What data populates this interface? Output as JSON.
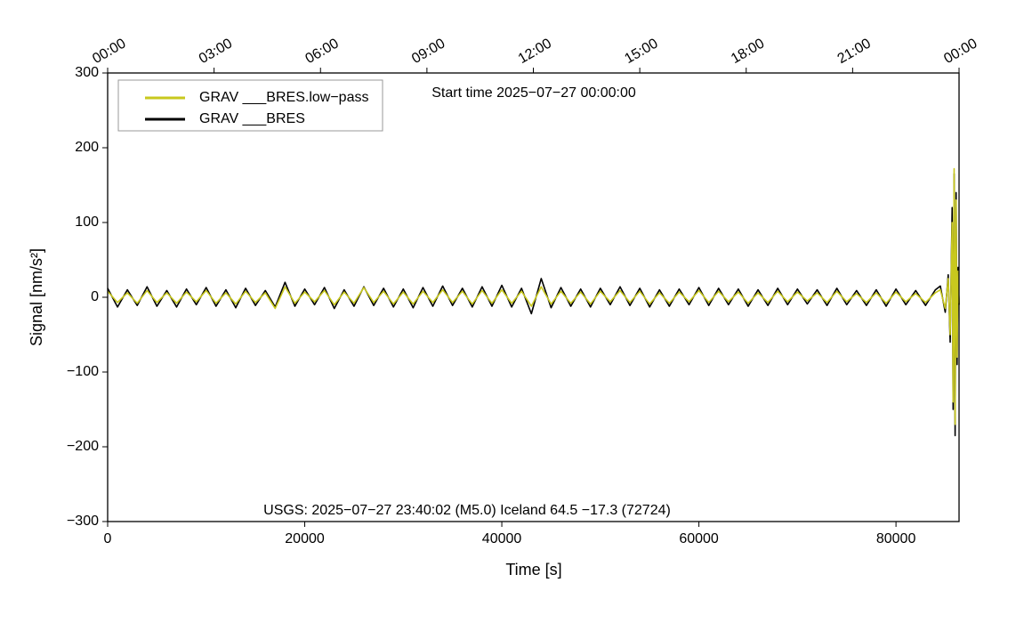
{
  "chart_data": {
    "type": "line",
    "annotations": [
      "Start time 2025−07−27 00:00:00",
      "USGS: 2025−07−27 23:40:02 (M5.0) Iceland 64.5 −17.3 (72724)"
    ],
    "x_label": "Time [s]",
    "y_label": "Signal [nm/s²]",
    "x": [
      0,
      1000,
      2000,
      3000,
      4000,
      5000,
      6000,
      7000,
      8000,
      9000,
      10000,
      11000,
      12000,
      13000,
      14000,
      15000,
      16000,
      17000,
      18000,
      19000,
      20000,
      21000,
      22000,
      23000,
      24000,
      25000,
      26000,
      27000,
      28000,
      29000,
      30000,
      31000,
      32000,
      33000,
      34000,
      35000,
      36000,
      37000,
      38000,
      39000,
      40000,
      41000,
      42000,
      43000,
      44000,
      45000,
      46000,
      47000,
      48000,
      49000,
      50000,
      51000,
      52000,
      53000,
      54000,
      55000,
      56000,
      57000,
      58000,
      59000,
      60000,
      61000,
      62000,
      63000,
      64000,
      65000,
      66000,
      67000,
      68000,
      69000,
      70000,
      71000,
      72000,
      73000,
      74000,
      75000,
      76000,
      77000,
      78000,
      79000,
      80000,
      81000,
      82000,
      83000,
      84000,
      84500,
      85000,
      85300,
      85500,
      85700,
      85800,
      85900,
      86000,
      86100,
      86200,
      86300,
      86400
    ],
    "series": [
      {
        "name": "GRAV ___BRES.low−pass",
        "color": "#c8c81e",
        "values": [
          8,
          -7,
          6,
          -8,
          9,
          -7,
          6,
          -8,
          7,
          -6,
          9,
          -8,
          6,
          -9,
          8,
          -7,
          6,
          -15,
          14,
          -8,
          7,
          -6,
          9,
          -10,
          7,
          -8,
          13,
          -7,
          8,
          -9,
          7,
          -9,
          8,
          -7,
          10,
          -7,
          8,
          -9,
          9,
          -8,
          10,
          -8,
          8,
          -12,
          14,
          -9,
          8,
          -8,
          7,
          -9,
          8,
          -6,
          9,
          -7,
          8,
          -9,
          6,
          -8,
          7,
          -6,
          9,
          -7,
          8,
          -6,
          7,
          -8,
          6,
          -7,
          8,
          -6,
          7,
          -5,
          6,
          -7,
          8,
          -6,
          5,
          -7,
          6,
          -8,
          7,
          -6,
          5,
          -7,
          6,
          10,
          -15,
          25,
          -50,
          100,
          -140,
          172,
          -170,
          130,
          -80,
          35,
          -8
        ]
      },
      {
        "name": "GRAV ___BRES",
        "color": "#000000",
        "values": [
          12,
          -13,
          10,
          -11,
          14,
          -12,
          9,
          -13,
          11,
          -10,
          13,
          -12,
          10,
          -14,
          12,
          -11,
          9,
          -13,
          20,
          -12,
          11,
          -10,
          13,
          -15,
          10,
          -12,
          14,
          -11,
          12,
          -13,
          11,
          -14,
          13,
          -12,
          15,
          -11,
          12,
          -13,
          14,
          -12,
          16,
          -13,
          12,
          -22,
          25,
          -14,
          13,
          -12,
          11,
          -13,
          12,
          -10,
          14,
          -11,
          12,
          -13,
          10,
          -12,
          11,
          -10,
          13,
          -11,
          12,
          -10,
          11,
          -12,
          10,
          -11,
          12,
          -10,
          11,
          -9,
          10,
          -11,
          12,
          -10,
          9,
          -11,
          10,
          -12,
          11,
          -10,
          9,
          -11,
          10,
          15,
          -20,
          30,
          -60,
          120,
          -150,
          165,
          -185,
          140,
          -90,
          40,
          -10
        ]
      }
    ],
    "xlim": [
      0,
      86400
    ],
    "xticks": [
      0,
      20000,
      40000,
      60000,
      80000
    ],
    "x2ticks": [
      {
        "value": 0,
        "label": "00:00"
      },
      {
        "value": 10800,
        "label": "03:00"
      },
      {
        "value": 21600,
        "label": "06:00"
      },
      {
        "value": 32400,
        "label": "09:00"
      },
      {
        "value": 43200,
        "label": "12:00"
      },
      {
        "value": 54000,
        "label": "15:00"
      },
      {
        "value": 64800,
        "label": "18:00"
      },
      {
        "value": 75600,
        "label": "21:00"
      },
      {
        "value": 86400,
        "label": "00:00"
      }
    ],
    "ylim": [
      -300,
      300
    ],
    "yticks": [
      {
        "value": -300,
        "label": "−300"
      },
      {
        "value": -200,
        "label": "−200"
      },
      {
        "value": -100,
        "label": "−100"
      },
      0,
      100,
      200,
      300
    ],
    "legend": "upper left"
  }
}
